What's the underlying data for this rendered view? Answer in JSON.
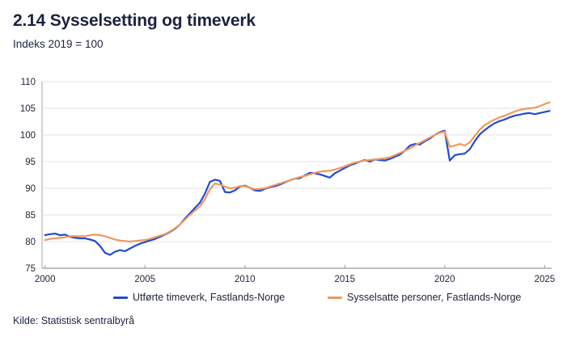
{
  "header": {
    "title": "2.14 Sysselsetting og timeverk",
    "subtitle": "Indeks 2019 = 100"
  },
  "footer": {
    "source": "Kilde: Statistisk sentralbyrå"
  },
  "colors": {
    "title_text": "#1b2340",
    "tick_text": "#20263a",
    "grid": "#e3e3e3",
    "axis_left": "#c4c4c4",
    "axis_bottom": "#9b9b9b",
    "series_timeverk": "#2349d4",
    "series_sysselsatte": "#f0985c"
  },
  "chart_data": {
    "type": "line",
    "title": "2.14 Sysselsetting og timeverk",
    "subtitle": "Indeks 2019 = 100",
    "xlabel": "",
    "ylabel": "Indeks 2019 = 100",
    "xlim": [
      1999.85,
      2025.35
    ],
    "ylim": [
      75,
      110
    ],
    "xticks": [
      2000,
      2005,
      2010,
      2015,
      2020,
      2025
    ],
    "yticks": [
      75,
      80,
      85,
      90,
      95,
      100,
      105,
      110
    ],
    "grid": "horizontal",
    "legend_position": "bottom",
    "x": [
      2000,
      2000.25,
      2000.5,
      2000.75,
      2001,
      2001.25,
      2001.5,
      2001.75,
      2002,
      2002.25,
      2002.5,
      2002.75,
      2003,
      2003.25,
      2003.5,
      2003.75,
      2004,
      2004.25,
      2004.5,
      2004.75,
      2005,
      2005.25,
      2005.5,
      2005.75,
      2006,
      2006.25,
      2006.5,
      2006.75,
      2007,
      2007.25,
      2007.5,
      2007.75,
      2008,
      2008.25,
      2008.5,
      2008.75,
      2009,
      2009.25,
      2009.5,
      2009.75,
      2010,
      2010.25,
      2010.5,
      2010.75,
      2011,
      2011.25,
      2011.5,
      2011.75,
      2012,
      2012.25,
      2012.5,
      2012.75,
      2013,
      2013.25,
      2013.5,
      2013.75,
      2014,
      2014.25,
      2014.5,
      2014.75,
      2015,
      2015.25,
      2015.5,
      2015.75,
      2016,
      2016.25,
      2016.5,
      2016.75,
      2017,
      2017.25,
      2017.5,
      2017.75,
      2018,
      2018.25,
      2018.5,
      2018.75,
      2019,
      2019.25,
      2019.5,
      2019.75,
      2020,
      2020.25,
      2020.5,
      2020.75,
      2021,
      2021.25,
      2021.5,
      2021.75,
      2022,
      2022.25,
      2022.5,
      2022.75,
      2023,
      2023.25,
      2023.5,
      2023.75,
      2024,
      2024.25,
      2024.5,
      2024.75,
      2025,
      2025.25
    ],
    "series": [
      {
        "name": "Utførte timeverk, Fastlands-Norge",
        "color": "#2349d4",
        "values": [
          81.2,
          81.4,
          81.5,
          81.2,
          81.3,
          80.9,
          80.7,
          80.6,
          80.6,
          80.4,
          80.1,
          79.2,
          77.9,
          77.5,
          78.1,
          78.4,
          78.2,
          78.7,
          79.2,
          79.6,
          79.9,
          80.2,
          80.5,
          80.9,
          81.3,
          81.8,
          82.4,
          83.2,
          84.3,
          85.3,
          86.3,
          87.3,
          89.0,
          91.2,
          91.6,
          91.4,
          89.3,
          89.2,
          89.6,
          90.3,
          90.5,
          90.1,
          89.6,
          89.5,
          89.9,
          90.2,
          90.4,
          90.7,
          91.1,
          91.5,
          91.8,
          91.9,
          92.4,
          92.9,
          92.8,
          92.6,
          92.3,
          92.0,
          92.8,
          93.3,
          93.8,
          94.3,
          94.6,
          95.0,
          95.3,
          95.0,
          95.4,
          95.3,
          95.2,
          95.5,
          95.9,
          96.3,
          97.0,
          98.0,
          98.3,
          98.2,
          98.8,
          99.3,
          100.0,
          100.5,
          100.8,
          95.2,
          96.2,
          96.4,
          96.5,
          97.3,
          98.8,
          100.1,
          100.9,
          101.6,
          102.2,
          102.6,
          102.9,
          103.3,
          103.6,
          103.8,
          104.0,
          104.1,
          103.9,
          104.1,
          104.3,
          104.5
        ]
      },
      {
        "name": "Sysselsatte personer, Fastlands-Norge",
        "color": "#f0985c",
        "values": [
          80.3,
          80.5,
          80.6,
          80.7,
          80.8,
          81.0,
          81.0,
          81.0,
          81.0,
          81.2,
          81.3,
          81.2,
          81.0,
          80.7,
          80.4,
          80.2,
          80.1,
          80.0,
          80.1,
          80.2,
          80.3,
          80.5,
          80.8,
          81.1,
          81.4,
          81.9,
          82.5,
          83.2,
          84.1,
          85.0,
          85.8,
          86.6,
          88.0,
          89.8,
          90.9,
          90.7,
          90.3,
          90.0,
          90.1,
          90.4,
          90.4,
          90.1,
          89.8,
          89.9,
          90.0,
          90.3,
          90.6,
          90.9,
          91.2,
          91.5,
          91.8,
          92.1,
          92.3,
          92.6,
          92.9,
          93.1,
          93.2,
          93.3,
          93.5,
          93.8,
          94.1,
          94.5,
          94.8,
          95.0,
          95.2,
          95.3,
          95.4,
          95.5,
          95.6,
          95.8,
          96.2,
          96.6,
          97.0,
          97.5,
          98.0,
          98.5,
          99.0,
          99.5,
          100.0,
          100.4,
          100.6,
          97.8,
          98.0,
          98.3,
          98.0,
          98.6,
          99.8,
          101.0,
          101.8,
          102.4,
          102.9,
          103.3,
          103.6,
          104.0,
          104.4,
          104.7,
          104.9,
          105.0,
          105.1,
          105.4,
          105.8,
          106.1
        ]
      }
    ]
  }
}
